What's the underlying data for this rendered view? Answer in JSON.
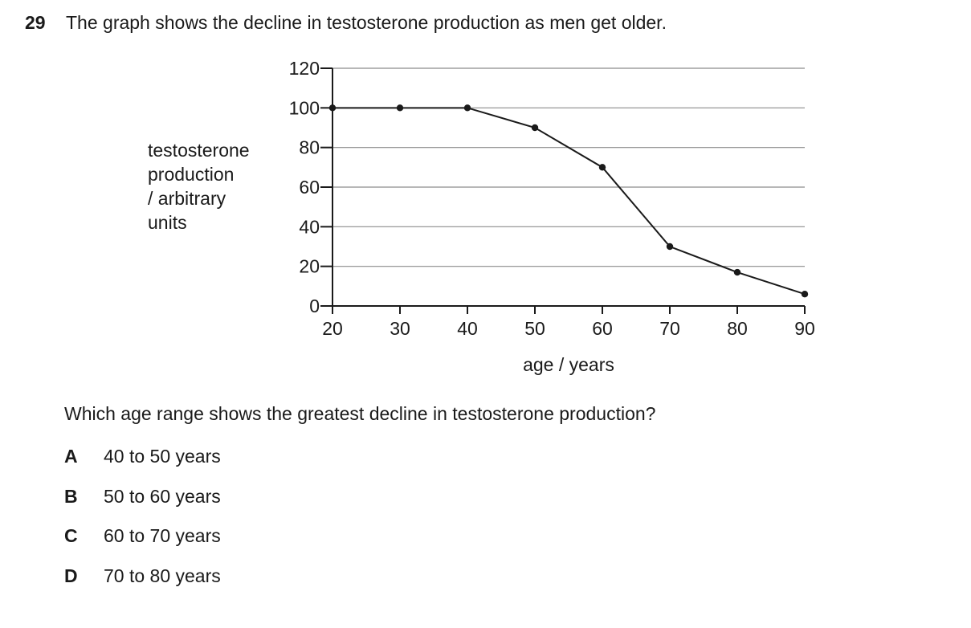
{
  "question": {
    "number": "29",
    "stem": "The graph shows the decline in testosterone production as men get older.",
    "prompt": "Which age range shows the greatest decline in testosterone production?",
    "options": [
      {
        "letter": "A",
        "text": "40 to 50 years"
      },
      {
        "letter": "B",
        "text": "50 to 60 years"
      },
      {
        "letter": "C",
        "text": "60 to 70 years"
      },
      {
        "letter": "D",
        "text": "70 to 80 years"
      }
    ]
  },
  "chart_data": {
    "type": "line",
    "ylabel": "testosterone\nproduction\n/ arbitrary\nunits",
    "xlabel": "age / years",
    "xlim": [
      20,
      90
    ],
    "ylim": [
      0,
      120
    ],
    "x_ticks": [
      20,
      30,
      40,
      50,
      60,
      70,
      80,
      90
    ],
    "y_ticks": [
      0,
      20,
      40,
      60,
      80,
      100,
      120
    ],
    "grid": "horizontal",
    "series": [
      {
        "x": [
          20,
          30,
          40,
          50,
          60,
          70,
          80,
          90
        ],
        "values": [
          100,
          100,
          100,
          90,
          70,
          30,
          17,
          6
        ]
      }
    ],
    "colors": {
      "line": "#1a1a1a",
      "grid": "#8c8c8c",
      "axis": "#1a1a1a"
    }
  }
}
